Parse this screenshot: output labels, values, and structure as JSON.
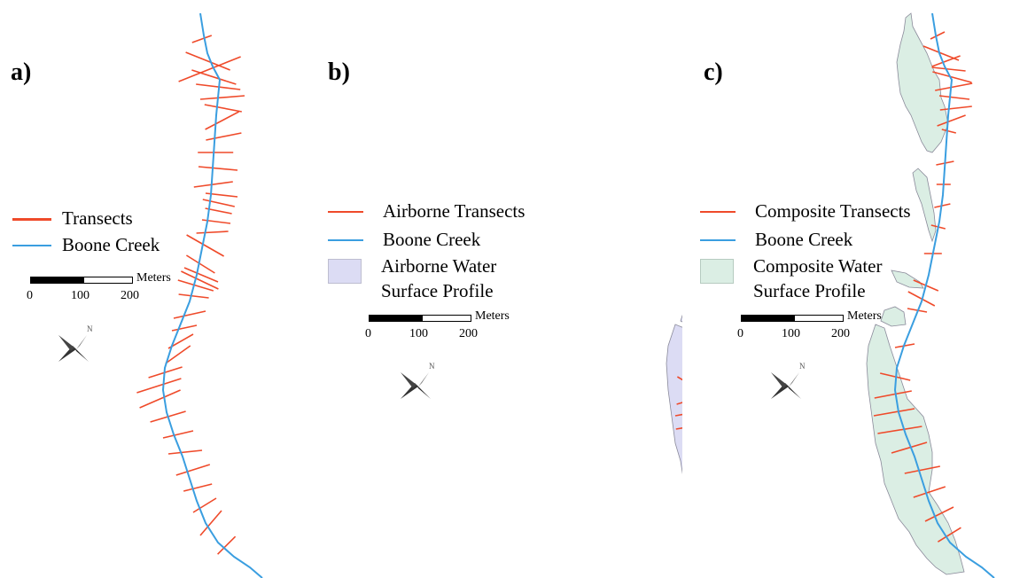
{
  "colors": {
    "transect": "#ef4a2a",
    "creek": "#3a9ee0",
    "airborne_fill": "#dcdcf4",
    "composite_fill": "#dbeee4",
    "outline": "#8a8a9a"
  },
  "panels": [
    {
      "label": "a)",
      "legend": [
        {
          "symbol": "red-line",
          "text": "Transects"
        },
        {
          "symbol": "blue-line",
          "text": "Boone Creek"
        }
      ],
      "scale": {
        "ticks": [
          "0",
          "100",
          "200"
        ],
        "unit": "Meters"
      },
      "north_arrow_icon": "north-arrow-icon"
    },
    {
      "label": "b)",
      "legend": [
        {
          "symbol": "red-line",
          "text": "Airborne Transects"
        },
        {
          "symbol": "blue-line",
          "text": "Boone Creek"
        },
        {
          "symbol": "fill-box",
          "text_line1": "Airborne Water",
          "text_line2": "Surface Profile"
        }
      ],
      "scale": {
        "ticks": [
          "0",
          "100",
          "200"
        ],
        "unit": "Meters"
      },
      "north_arrow_icon": "north-arrow-icon"
    },
    {
      "label": "c)",
      "legend": [
        {
          "symbol": "red-line",
          "text": "Composite Transects"
        },
        {
          "symbol": "blue-line",
          "text": "Boone Creek"
        },
        {
          "symbol": "fill-box",
          "text_line1": "Composite Water",
          "text_line2": "Surface Profile"
        }
      ],
      "scale": {
        "ticks": [
          "0",
          "100",
          "200"
        ],
        "unit": "Meters"
      },
      "north_arrow_icon": "north-arrow-icon"
    }
  ]
}
